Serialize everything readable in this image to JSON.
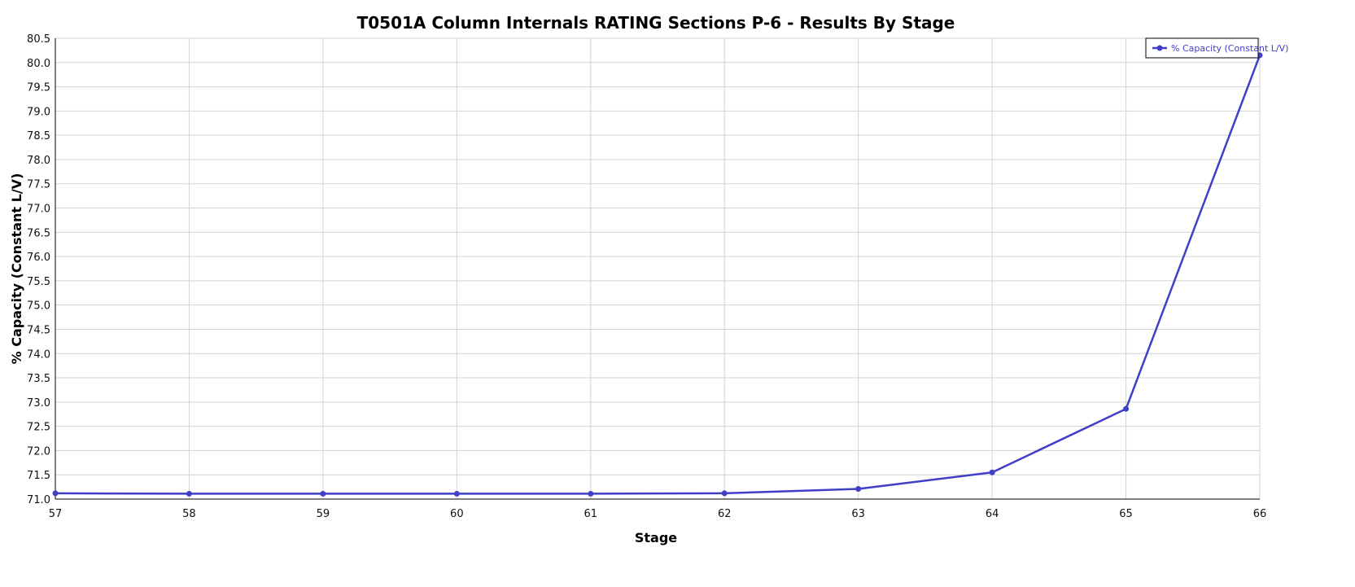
{
  "chart_data": {
    "type": "line",
    "title": "T0501A Column Internals RATING Sections P-6 - Results By Stage",
    "xlabel": "Stage",
    "ylabel": "% Capacity (Constant L/V)",
    "x": [
      57,
      58,
      59,
      60,
      61,
      62,
      63,
      64,
      65,
      66
    ],
    "xlim": [
      57,
      66
    ],
    "ylim": [
      71.0,
      80.5
    ],
    "x_ticks": [
      "57",
      "58",
      "59",
      "60",
      "61",
      "62",
      "63",
      "64",
      "65",
      "66"
    ],
    "y_ticks": [
      "71.0",
      "71.5",
      "72.0",
      "72.5",
      "73.0",
      "73.5",
      "74.0",
      "74.5",
      "75.0",
      "75.5",
      "76.0",
      "76.5",
      "77.0",
      "77.5",
      "78.0",
      "78.5",
      "79.0",
      "79.5",
      "80.0",
      "80.5"
    ],
    "grid": true,
    "legend_position": "top-right",
    "series": [
      {
        "name": "% Capacity (Constant L/V)",
        "color": "#3f3fc8",
        "values": [
          71.12,
          71.11,
          71.11,
          71.11,
          71.11,
          71.12,
          71.21,
          71.55,
          72.86,
          80.15
        ]
      }
    ]
  },
  "colors": {
    "grid": "#d3d3d3",
    "axis": "#000000",
    "background": "#ffffff"
  }
}
